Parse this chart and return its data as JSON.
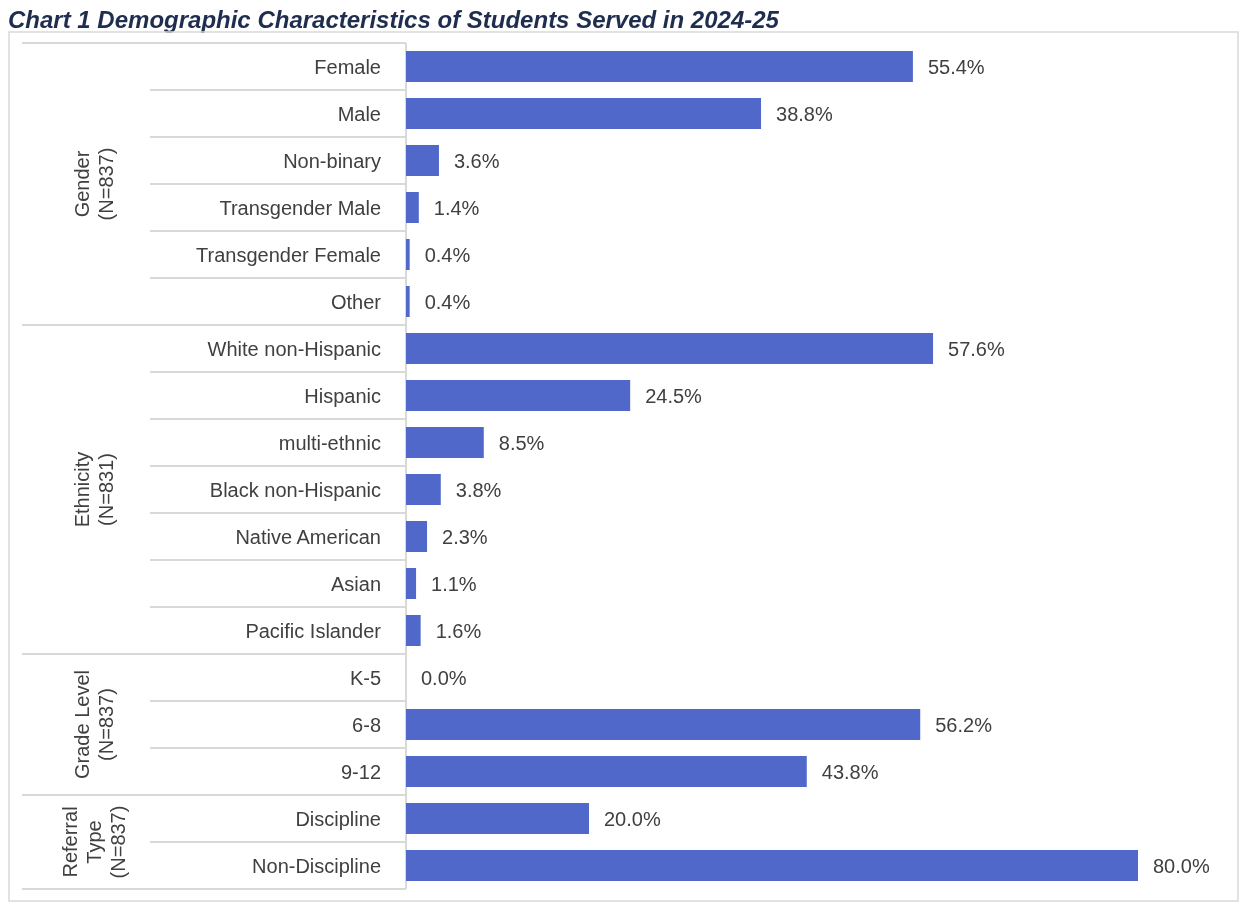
{
  "chart_data": {
    "type": "bar",
    "orientation": "horizontal",
    "title": "Chart 1 Demographic Characteristics of Students Served in 2024-25",
    "categories": [
      "Female",
      "Male",
      "Non-binary",
      "Transgender Male",
      "Transgender Female",
      "Other",
      "White non-Hispanic",
      "Hispanic",
      "multi-ethnic",
      "Black non-Hispanic",
      "Native American",
      "Asian",
      "Pacific Islander",
      "K-5",
      "6-8",
      "9-12",
      "Discipline",
      "Non-Discipline"
    ],
    "values": [
      55.4,
      38.8,
      3.6,
      1.4,
      0.4,
      0.4,
      57.6,
      24.5,
      8.5,
      3.8,
      2.3,
      1.1,
      1.6,
      0.0,
      56.2,
      43.8,
      20.0,
      80.0
    ],
    "value_labels": [
      "55.4%",
      "38.8%",
      "3.6%",
      "1.4%",
      "0.4%",
      "0.4%",
      "57.6%",
      "24.5%",
      "8.5%",
      "3.8%",
      "2.3%",
      "1.1%",
      "1.6%",
      "0.0%",
      "56.2%",
      "43.8%",
      "20.0%",
      "80.0%"
    ],
    "color": "#4f68c9",
    "annotations": [
      "Gender\n(N=837)",
      "Ethnicity\n(N=831)",
      "Grade Level\n(N=837)",
      "Referral\nType\n(N=837)"
    ]
  }
}
